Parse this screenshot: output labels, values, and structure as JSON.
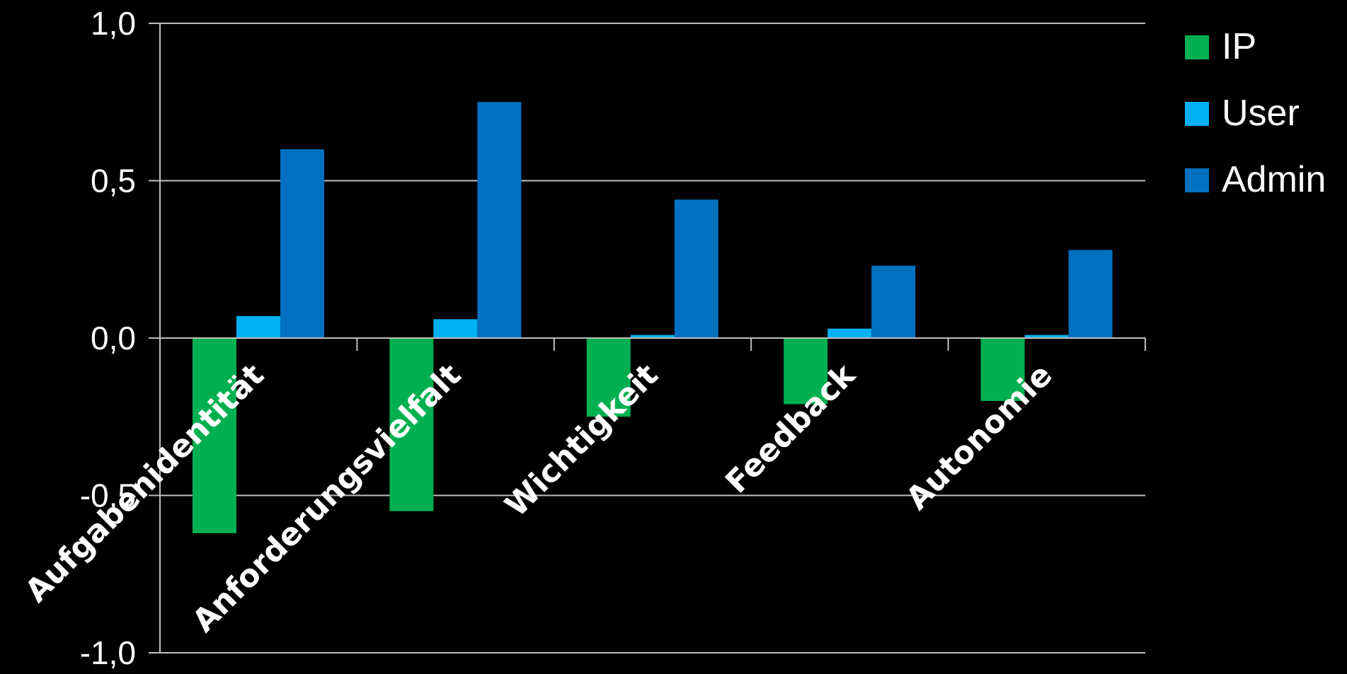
{
  "chart_data": {
    "type": "bar",
    "categories": [
      "Aufgabenidentität",
      "Anforderungsvielfalt",
      "Wichtigkeit",
      "Feedback",
      "Autonomie"
    ],
    "series": [
      {
        "name": "IP",
        "values": [
          -0.62,
          -0.55,
          -0.25,
          -0.21,
          -0.2
        ],
        "color": "#00b050"
      },
      {
        "name": "User",
        "values": [
          0.07,
          0.06,
          0.01,
          0.03,
          0.01
        ],
        "color": "#00b0f0"
      },
      {
        "name": "Admin",
        "values": [
          0.6,
          0.75,
          0.44,
          0.23,
          0.28
        ],
        "color": "#0070c0"
      }
    ],
    "yticks": [
      "-1,0",
      "-0,5",
      "0,0",
      "0,5",
      "1,0"
    ],
    "ylim": [
      -1.0,
      1.0
    ],
    "grid": true,
    "legend_position": "right",
    "title": "",
    "xlabel": "",
    "ylabel": ""
  }
}
